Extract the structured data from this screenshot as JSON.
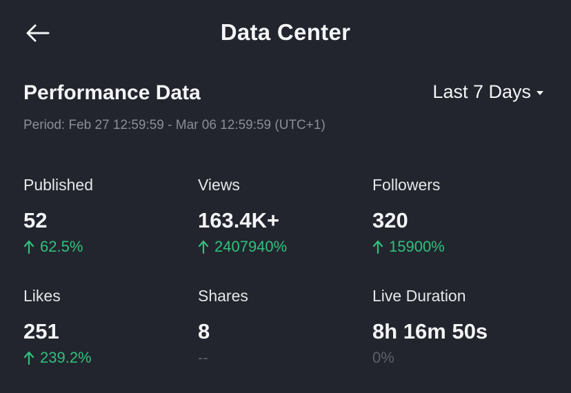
{
  "header": {
    "title": "Data Center"
  },
  "section": {
    "title": "Performance Data",
    "range": "Last 7 Days",
    "period": "Period: Feb 27 12:59:59 - Mar 06 12:59:59 (UTC+1)"
  },
  "colors": {
    "background": "#22252d",
    "positive": "#2ec27e",
    "muted": "#5c6068"
  },
  "metrics": [
    {
      "label": "Published",
      "value": "52",
      "change": "62.5%",
      "trend": "up"
    },
    {
      "label": "Views",
      "value": "163.4K+",
      "change": "2407940%",
      "trend": "up"
    },
    {
      "label": "Followers",
      "value": "320",
      "change": "15900%",
      "trend": "up"
    },
    {
      "label": "Likes",
      "value": "251",
      "change": "239.2%",
      "trend": "up"
    },
    {
      "label": "Shares",
      "value": "8",
      "change": "--",
      "trend": "none"
    },
    {
      "label": "Live Duration",
      "value": "8h 16m 50s",
      "change": "0%",
      "trend": "none"
    }
  ],
  "icons": {
    "back": "arrow-left-icon",
    "dropdown": "caret-down-icon",
    "trend_up": "arrow-up-icon"
  }
}
